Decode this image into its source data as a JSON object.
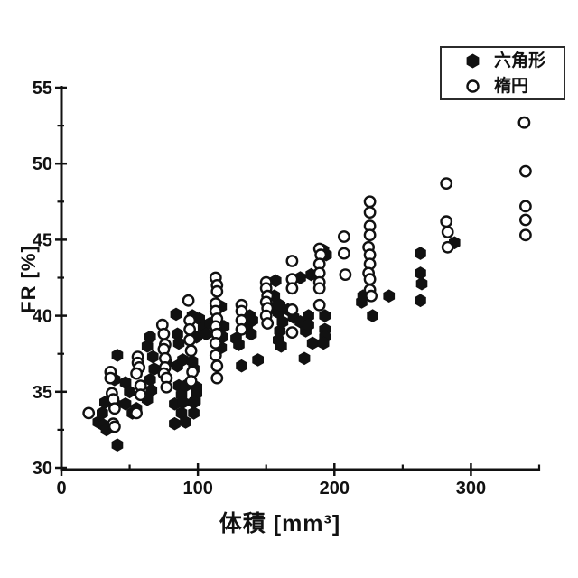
{
  "page": {
    "background": "#ffffff",
    "ink": "#111111"
  },
  "chart_data": {
    "type": "scatter",
    "title": "",
    "xlabel": "体積 [mm³]",
    "ylabel": "FR [%]",
    "xlim": [
      0,
      350
    ],
    "ylim": [
      30,
      55
    ],
    "x_major_ticks": [
      0,
      100,
      200,
      300
    ],
    "x_minor_ticks": [
      50,
      150,
      250,
      350
    ],
    "y_major_ticks": [
      30,
      35,
      40,
      45,
      50,
      55
    ],
    "y_minor_ticks": [
      32.5,
      37.5,
      42.5,
      47.5,
      52.5
    ],
    "grid": false,
    "legend_position": "top-right",
    "series": [
      {
        "name": "六角形",
        "marker": "filled-hexagon",
        "color": "#111111",
        "points": [
          [
            27,
            33.0
          ],
          [
            30,
            33.6
          ],
          [
            31,
            32.8
          ],
          [
            32,
            34.3
          ],
          [
            33,
            32.5
          ],
          [
            39,
            35.8
          ],
          [
            41,
            37.4
          ],
          [
            39,
            34.2
          ],
          [
            41,
            31.5
          ],
          [
            47,
            35.6
          ],
          [
            50,
            35.0
          ],
          [
            47,
            34.2
          ],
          [
            52,
            33.6
          ],
          [
            55,
            33.9
          ],
          [
            63,
            38.0
          ],
          [
            65,
            38.6
          ],
          [
            67,
            37.3
          ],
          [
            68,
            36.5
          ],
          [
            65,
            35.8
          ],
          [
            66,
            35.1
          ],
          [
            63,
            34.5
          ],
          [
            77,
            36.9
          ],
          [
            84,
            40.1
          ],
          [
            85,
            38.8
          ],
          [
            86,
            38.2
          ],
          [
            85,
            36.7
          ],
          [
            86,
            35.4
          ],
          [
            88,
            34.8
          ],
          [
            83,
            34.2
          ],
          [
            88,
            33.6
          ],
          [
            83,
            32.9
          ],
          [
            89,
            37.1
          ],
          [
            91,
            35.4
          ],
          [
            89,
            34.3
          ],
          [
            91,
            33.0
          ],
          [
            96,
            40.0
          ],
          [
            99,
            38.6
          ],
          [
            96,
            37.0
          ],
          [
            97,
            36.5
          ],
          [
            99,
            35.3
          ],
          [
            99,
            34.9
          ],
          [
            98,
            34.4
          ],
          [
            97,
            34.3
          ],
          [
            97,
            33.6
          ],
          [
            101,
            39.8
          ],
          [
            104,
            39.2
          ],
          [
            106,
            38.8
          ],
          [
            109,
            39.5
          ],
          [
            117,
            40.6
          ],
          [
            119,
            39.3
          ],
          [
            118,
            38.6
          ],
          [
            117,
            37.9
          ],
          [
            128,
            38.5
          ],
          [
            130,
            38.1
          ],
          [
            132,
            36.7
          ],
          [
            136,
            39.3
          ],
          [
            138,
            40.0
          ],
          [
            140,
            39.7
          ],
          [
            139,
            38.8
          ],
          [
            144,
            37.1
          ],
          [
            155,
            40.5
          ],
          [
            156,
            41.3
          ],
          [
            157,
            42.3
          ],
          [
            159,
            40.2
          ],
          [
            160,
            40.7
          ],
          [
            160,
            39.0
          ],
          [
            159,
            38.4
          ],
          [
            162,
            39.6
          ],
          [
            161,
            38.0
          ],
          [
            166,
            40.4
          ],
          [
            170,
            39.9
          ],
          [
            175,
            42.5
          ],
          [
            175,
            39.6
          ],
          [
            179,
            39.0
          ],
          [
            178,
            37.2
          ],
          [
            181,
            40.0
          ],
          [
            183,
            42.7
          ],
          [
            181,
            39.4
          ],
          [
            184,
            38.2
          ],
          [
            192,
            44.3
          ],
          [
            194,
            44.0
          ],
          [
            193,
            40.0
          ],
          [
            193,
            39.1
          ],
          [
            193,
            38.6
          ],
          [
            192,
            38.2
          ],
          [
            220,
            40.9
          ],
          [
            221,
            41.3
          ],
          [
            228,
            40.0
          ],
          [
            240,
            41.3
          ],
          [
            263,
            44.1
          ],
          [
            263,
            42.8
          ],
          [
            264,
            42.1
          ],
          [
            263,
            41.0
          ],
          [
            288,
            44.8
          ]
        ]
      },
      {
        "name": "楕円",
        "marker": "open-circle",
        "color": "#111111",
        "points": [
          [
            20,
            33.6
          ],
          [
            36,
            36.3
          ],
          [
            36,
            35.9
          ],
          [
            37,
            34.9
          ],
          [
            38,
            34.5
          ],
          [
            39,
            33.9
          ],
          [
            38,
            32.9
          ],
          [
            39,
            32.7
          ],
          [
            56,
            37.3
          ],
          [
            56,
            36.9
          ],
          [
            57,
            36.6
          ],
          [
            55,
            36.2
          ],
          [
            58,
            35.4
          ],
          [
            58,
            34.8
          ],
          [
            55,
            33.6
          ],
          [
            74,
            39.4
          ],
          [
            75,
            38.8
          ],
          [
            76,
            38.1
          ],
          [
            75,
            37.8
          ],
          [
            76,
            37.2
          ],
          [
            76,
            36.6
          ],
          [
            75,
            36.2
          ],
          [
            77,
            35.9
          ],
          [
            77,
            35.3
          ],
          [
            93,
            41.0
          ],
          [
            94,
            39.7
          ],
          [
            94,
            39.1
          ],
          [
            94,
            38.4
          ],
          [
            95,
            37.7
          ],
          [
            96,
            36.3
          ],
          [
            95,
            35.7
          ],
          [
            113,
            42.5
          ],
          [
            114,
            42.0
          ],
          [
            114,
            41.6
          ],
          [
            113,
            40.8
          ],
          [
            113,
            40.3
          ],
          [
            114,
            39.8
          ],
          [
            113,
            39.3
          ],
          [
            114,
            38.8
          ],
          [
            113,
            38.2
          ],
          [
            113,
            37.4
          ],
          [
            114,
            36.7
          ],
          [
            114,
            35.9
          ],
          [
            132,
            40.7
          ],
          [
            132,
            40.3
          ],
          [
            132,
            39.7
          ],
          [
            132,
            39.1
          ],
          [
            150,
            42.2
          ],
          [
            150,
            41.8
          ],
          [
            151,
            41.3
          ],
          [
            150,
            40.9
          ],
          [
            151,
            40.5
          ],
          [
            150,
            40.0
          ],
          [
            151,
            39.5
          ],
          [
            169,
            43.6
          ],
          [
            169,
            42.4
          ],
          [
            169,
            41.8
          ],
          [
            169,
            40.4
          ],
          [
            169,
            38.9
          ],
          [
            189,
            44.4
          ],
          [
            190,
            44.0
          ],
          [
            189,
            43.4
          ],
          [
            189,
            42.8
          ],
          [
            189,
            42.2
          ],
          [
            189,
            41.8
          ],
          [
            189,
            40.7
          ],
          [
            207,
            45.2
          ],
          [
            207,
            44.1
          ],
          [
            208,
            42.7
          ],
          [
            226,
            47.5
          ],
          [
            226,
            46.8
          ],
          [
            226,
            45.9
          ],
          [
            226,
            45.3
          ],
          [
            225,
            44.5
          ],
          [
            226,
            44.0
          ],
          [
            226,
            43.4
          ],
          [
            225,
            42.8
          ],
          [
            226,
            42.4
          ],
          [
            226,
            41.7
          ],
          [
            227,
            41.3
          ],
          [
            282,
            48.7
          ],
          [
            282,
            46.2
          ],
          [
            283,
            45.5
          ],
          [
            283,
            44.5
          ],
          [
            339,
            52.7
          ],
          [
            340,
            49.5
          ],
          [
            340,
            47.2
          ],
          [
            340,
            46.3
          ],
          [
            340,
            45.3
          ]
        ]
      }
    ]
  }
}
